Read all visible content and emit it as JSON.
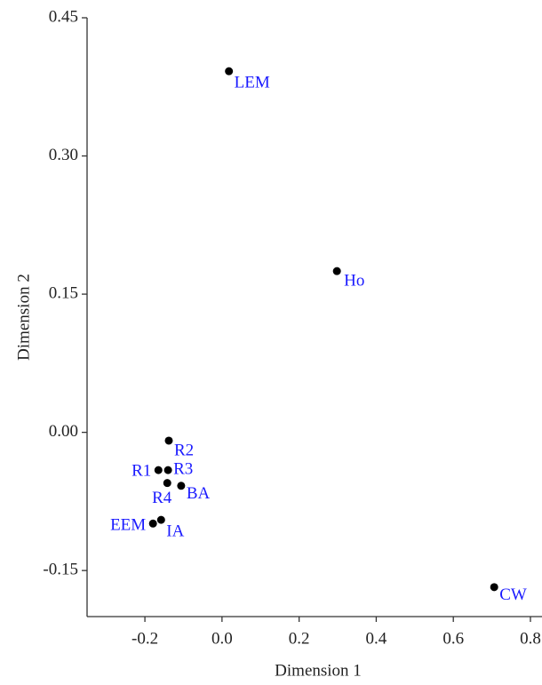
{
  "chart_data": {
    "type": "scatter",
    "x_label": "Dimension 1",
    "y_label": "Dimension 2",
    "labels": [
      "LEM",
      "Ho",
      "R2",
      "R1",
      "R3",
      "R4",
      "BA",
      "IA",
      "EEM",
      "CW"
    ],
    "x": [
      0.018,
      0.298,
      -0.138,
      -0.165,
      -0.14,
      -0.142,
      -0.106,
      -0.158,
      -0.179,
      0.706
    ],
    "values": [
      0.392,
      0.175,
      -0.009,
      -0.041,
      -0.041,
      -0.055,
      -0.058,
      -0.095,
      -0.099,
      -0.168
    ],
    "color": "#000000",
    "label_color": "#1a1aff",
    "xlim": [
      -0.35,
      0.83
    ],
    "ylim": [
      -0.2,
      0.45
    ],
    "xticks": [
      -0.2,
      {
        "value": 0,
        "label": "0.0"
      },
      0.2,
      0.4,
      0.6,
      0.8
    ],
    "yticks": [
      {
        "value": 0.45,
        "label": "0.45"
      },
      {
        "value": 0.3,
        "label": "0.30"
      },
      {
        "value": 0.15,
        "label": "0.15"
      },
      {
        "value": 0,
        "label": "0.00"
      },
      {
        "value": -0.15,
        "label": "-0.15"
      }
    ]
  }
}
